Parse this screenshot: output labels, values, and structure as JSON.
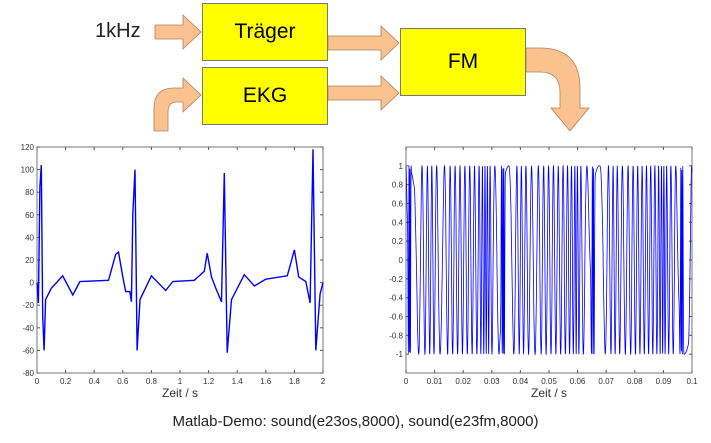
{
  "diagram": {
    "input_label": "1kHz",
    "blocks": {
      "carrier": "Träger",
      "ecg": "EKG",
      "fm": "FM"
    },
    "arrow_color": "#f9c28f",
    "block_color": "#ffff00"
  },
  "caption": "Matlab-Demo:  sound(e23os,8000), sound(e23fm,8000)",
  "chart_data": [
    {
      "type": "line",
      "xlabel": "Zeit / s",
      "ylabel": "",
      "xlim": [
        0,
        2
      ],
      "ylim": [
        -80,
        120
      ],
      "xticks": [
        "0",
        "0.2",
        "0.4",
        "0.6",
        "0.8",
        "1",
        "1.2",
        "1.4",
        "1.6",
        "1.8",
        "2"
      ],
      "yticks": [
        "-80",
        "-60",
        "-40",
        "-20",
        "0",
        "20",
        "40",
        "60",
        "80",
        "100",
        "120"
      ],
      "color": "#0000ff",
      "x": [
        0,
        0.01,
        0.02,
        0.03,
        0.04,
        0.05,
        0.06,
        0.1,
        0.18,
        0.25,
        0.3,
        0.5,
        0.55,
        0.57,
        0.6,
        0.62,
        0.65,
        0.66,
        0.67,
        0.685,
        0.7,
        0.72,
        0.8,
        0.9,
        0.95,
        1.1,
        1.17,
        1.19,
        1.22,
        1.25,
        1.29,
        1.31,
        1.33,
        1.36,
        1.45,
        1.52,
        1.6,
        1.75,
        1.8,
        1.83,
        1.88,
        1.91,
        1.93,
        1.95,
        1.98,
        2.0
      ],
      "y": [
        0,
        -18,
        85,
        104,
        -30,
        -60,
        -15,
        -5,
        6,
        -11,
        1,
        2,
        25,
        27,
        5,
        -8,
        -8,
        -17,
        60,
        100,
        -60,
        -15,
        6,
        -7,
        1,
        2,
        10,
        26,
        5,
        -5,
        -17,
        97,
        -62,
        -15,
        7,
        -3,
        3,
        6,
        29,
        5,
        1,
        -18,
        118,
        -60,
        -10,
        0
      ]
    },
    {
      "type": "line",
      "xlabel": "Zeit / s",
      "ylabel": "",
      "xlim": [
        0,
        0.1
      ],
      "ylim": [
        -1.2,
        1.2
      ],
      "xticks": [
        "0",
        "0.01",
        "0.02",
        "0.03",
        "0.04",
        "0.05",
        "0.06",
        "0.07",
        "0.08",
        "0.09",
        "0.1"
      ],
      "yticks": [
        "-1",
        "-0.8",
        "-0.6",
        "-0.4",
        "-0.2",
        "0",
        "0.2",
        "0.4",
        "0.6",
        "0.8",
        "1"
      ],
      "color": "#0000ff",
      "carrier_hz": 1000
    }
  ]
}
